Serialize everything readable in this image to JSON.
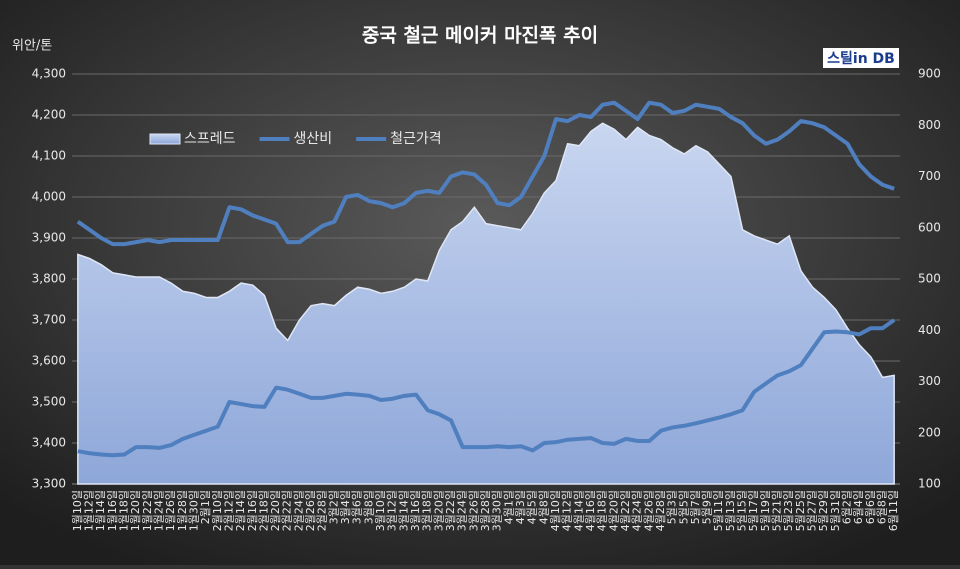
{
  "chart_data": {
    "type": "combo",
    "title": "중국 철근 메이커 마진폭 추이",
    "y_label": "위안/톤",
    "logo": "스틸in DB",
    "categories": [
      "1월10일",
      "1월12일",
      "1월14일",
      "1월16일",
      "1월18일",
      "1월20일",
      "1월22일",
      "1월24일",
      "1월26일",
      "1월28일",
      "1월30일",
      "2월1일",
      "2월10일",
      "2월12일",
      "2월14일",
      "2월16일",
      "2월18일",
      "2월20일",
      "2월22일",
      "2월24일",
      "2월26일",
      "2월28일",
      "3월2일",
      "3월4일",
      "3월6일",
      "3월8일",
      "3월10일",
      "3월12일",
      "3월14일",
      "3월16일",
      "3월18일",
      "3월20일",
      "3월22일",
      "3월24일",
      "3월26일",
      "3월28일",
      "3월30일",
      "4월1일",
      "4월3일",
      "4월5일",
      "4월8일",
      "4월10일",
      "4월12일",
      "4월14일",
      "4월16일",
      "4월18일",
      "4월20일",
      "4월22일",
      "4월24일",
      "4월26일",
      "4월28일",
      "5월3일",
      "5월5일",
      "5월7일",
      "5월9일",
      "5월11일",
      "5월13일",
      "5월15일",
      "5월17일",
      "5월19일",
      "5월21일",
      "5월23일",
      "5월25일",
      "5월27일",
      "5월29일",
      "5월31일",
      "6월2일",
      "6월4일",
      "6월6일",
      "6월8일",
      "6월11일"
    ],
    "series": [
      {
        "name": "스프레드",
        "type": "area",
        "axis": "y2",
        "color": "#9fb4e0",
        "values": [
          548,
          540,
          528,
          512,
          508,
          504,
          504,
          504,
          492,
          476,
          472,
          464,
          464,
          476,
          492,
          488,
          468,
          404,
          380,
          420,
          448,
          452,
          448,
          468,
          484,
          480,
          472,
          476,
          484,
          500,
          496,
          556,
          596,
          612,
          640,
          608,
          604,
          600,
          596,
          628,
          668,
          692,
          764,
          760,
          788,
          804,
          792,
          772,
          796,
          780,
          772,
          756,
          744,
          760,
          748,
          724,
          700,
          596,
          584,
          576,
          568,
          584,
          516,
          484,
          464,
          440,
          404,
          372,
          348,
          308,
          312
        ]
      },
      {
        "name": "생산비",
        "type": "line",
        "axis": "y",
        "color": "#4f7fbf",
        "values": [
          3380,
          3375,
          3372,
          3370,
          3372,
          3390,
          3390,
          3388,
          3395,
          3410,
          3420,
          3430,
          3440,
          3500,
          3495,
          3490,
          3488,
          3535,
          3530,
          3520,
          3510,
          3510,
          3515,
          3520,
          3518,
          3515,
          3505,
          3508,
          3515,
          3518,
          3480,
          3470,
          3455,
          3390,
          3390,
          3390,
          3392,
          3390,
          3392,
          3382,
          3400,
          3402,
          3408,
          3410,
          3412,
          3400,
          3398,
          3410,
          3405,
          3405,
          3430,
          3438,
          3442,
          3448,
          3455,
          3462,
          3470,
          3480,
          3525,
          3545,
          3565,
          3575,
          3590,
          3630,
          3670,
          3672,
          3670,
          3665,
          3680,
          3680,
          3700
        ]
      },
      {
        "name": "철근가격",
        "type": "line",
        "axis": "y",
        "color": "#4f7fbf",
        "values": [
          3940,
          3920,
          3900,
          3885,
          3885,
          3890,
          3895,
          3890,
          3895,
          3895,
          3895,
          3895,
          3895,
          3975,
          3970,
          3955,
          3945,
          3935,
          3890,
          3890,
          3910,
          3930,
          3940,
          4000,
          4005,
          3990,
          3985,
          3975,
          3985,
          4010,
          4015,
          4010,
          4050,
          4060,
          4055,
          4030,
          3985,
          3980,
          4000,
          4050,
          4100,
          4190,
          4185,
          4200,
          4195,
          4225,
          4230,
          4210,
          4190,
          4230,
          4225,
          4205,
          4210,
          4225,
          4220,
          4215,
          4195,
          4180,
          4150,
          4130,
          4140,
          4160,
          4185,
          4180,
          4170,
          4150,
          4130,
          4080,
          4050,
          4030,
          4020
        ]
      }
    ],
    "ylim": [
      3300,
      4300
    ],
    "yticks": [
      {
        "value": 3300,
        "label": "3,300"
      },
      {
        "value": 3400,
        "label": "3,400"
      },
      {
        "value": 3500,
        "label": "3,500"
      },
      {
        "value": 3600,
        "label": "3,600"
      },
      {
        "value": 3700,
        "label": "3,700"
      },
      {
        "value": 3800,
        "label": "3,800"
      },
      {
        "value": 3900,
        "label": "3,900"
      },
      {
        "value": 4000,
        "label": "4,000"
      },
      {
        "value": 4100,
        "label": "4,100"
      },
      {
        "value": 4200,
        "label": "4,200"
      },
      {
        "value": 4300,
        "label": "4,300"
      }
    ],
    "y2lim": [
      100,
      900
    ],
    "y2ticks": [
      100,
      200,
      300,
      400,
      500,
      600,
      700,
      800,
      900
    ],
    "grid": true,
    "legend": "upper left"
  }
}
